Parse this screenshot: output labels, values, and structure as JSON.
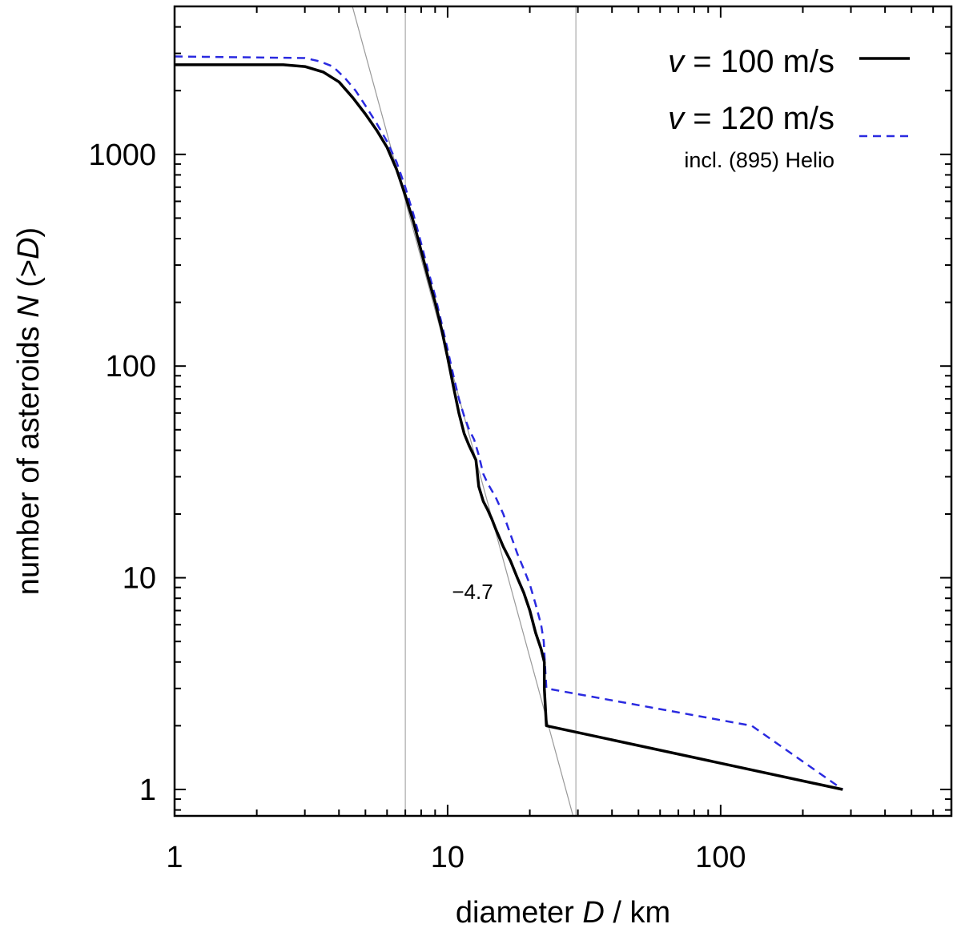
{
  "chart_data": {
    "type": "line",
    "xscale": "log",
    "yscale": "log",
    "xlim": [
      1,
      700
    ],
    "ylim": [
      0.75,
      5000
    ],
    "xlabel": {
      "prefix": "diameter ",
      "var": "D",
      "suffix": " / km"
    },
    "ylabel": {
      "prefix": "number of asteroids ",
      "var": "N",
      "mid": " (>",
      "var2": "D",
      "suffix": ")"
    },
    "x_ticks": [
      {
        "value": 1,
        "label": "1"
      },
      {
        "value": 10,
        "label": "10"
      },
      {
        "value": 100,
        "label": "100"
      }
    ],
    "y_ticks": [
      {
        "value": 1,
        "label": "1"
      },
      {
        "value": 10,
        "label": "10"
      },
      {
        "value": 100,
        "label": "100"
      },
      {
        "value": 1000,
        "label": "1000"
      }
    ],
    "vertical_lines": [
      7.0,
      29.5
    ],
    "fit_line": {
      "slope": -4.7,
      "label": "−4.7",
      "points": [
        [
          4.48,
          5000
        ],
        [
          28.8,
          0.75
        ]
      ]
    },
    "legend_position": "top-right",
    "series": [
      {
        "name_var": "v",
        "name_rest": " = 100 m/s",
        "sublabel": "",
        "color": "#000000",
        "style": "solid",
        "points": [
          [
            1.0,
            2650
          ],
          [
            2.5,
            2650
          ],
          [
            3.0,
            2600
          ],
          [
            3.5,
            2450
          ],
          [
            4.0,
            2200
          ],
          [
            4.5,
            1850
          ],
          [
            5.0,
            1550
          ],
          [
            5.5,
            1300
          ],
          [
            6.0,
            1080
          ],
          [
            6.5,
            850
          ],
          [
            7.0,
            640
          ],
          [
            7.5,
            480
          ],
          [
            8.0,
            350
          ],
          [
            8.5,
            260
          ],
          [
            9.0,
            200
          ],
          [
            9.5,
            150
          ],
          [
            10.0,
            110
          ],
          [
            10.5,
            80
          ],
          [
            11.0,
            60
          ],
          [
            11.5,
            48
          ],
          [
            12.0,
            42
          ],
          [
            12.7,
            36
          ],
          [
            13.0,
            27
          ],
          [
            13.5,
            23
          ],
          [
            14.0,
            21
          ],
          [
            14.5,
            19
          ],
          [
            15.0,
            17
          ],
          [
            16.0,
            14
          ],
          [
            17.0,
            12
          ],
          [
            18.0,
            10
          ],
          [
            19.0,
            8.5
          ],
          [
            20.0,
            7
          ],
          [
            21.0,
            5.5
          ],
          [
            22.0,
            4.6
          ],
          [
            22.6,
            4.0
          ],
          [
            22.6,
            3.0
          ],
          [
            23.0,
            2.0
          ],
          [
            280,
            1.0
          ]
        ]
      },
      {
        "name_var": "v",
        "name_rest": " = 120 m/s",
        "sublabel": "incl. (895) Helio",
        "color": "#2a2ae0",
        "style": "dashed",
        "points": [
          [
            1.0,
            2900
          ],
          [
            3.0,
            2850
          ],
          [
            3.4,
            2750
          ],
          [
            3.8,
            2600
          ],
          [
            4.2,
            2300
          ],
          [
            4.6,
            2000
          ],
          [
            5.0,
            1700
          ],
          [
            5.5,
            1400
          ],
          [
            6.0,
            1150
          ],
          [
            6.5,
            920
          ],
          [
            7.0,
            700
          ],
          [
            7.5,
            520
          ],
          [
            8.0,
            380
          ],
          [
            8.5,
            280
          ],
          [
            9.0,
            215
          ],
          [
            9.5,
            160
          ],
          [
            10.0,
            120
          ],
          [
            10.5,
            90
          ],
          [
            11.0,
            70
          ],
          [
            11.5,
            58
          ],
          [
            12.0,
            50
          ],
          [
            12.5,
            45
          ],
          [
            13.0,
            38
          ],
          [
            13.5,
            31
          ],
          [
            14.0,
            28
          ],
          [
            15.0,
            24
          ],
          [
            16.0,
            20
          ],
          [
            17.0,
            16
          ],
          [
            18.0,
            13
          ],
          [
            19.0,
            11
          ],
          [
            20.0,
            9.3
          ],
          [
            21.0,
            7.5
          ],
          [
            22.0,
            6.0
          ],
          [
            22.5,
            5.0
          ],
          [
            22.8,
            3.6
          ],
          [
            23.0,
            3.0
          ],
          [
            130,
            2.0
          ],
          [
            280,
            1.0
          ]
        ]
      }
    ]
  }
}
